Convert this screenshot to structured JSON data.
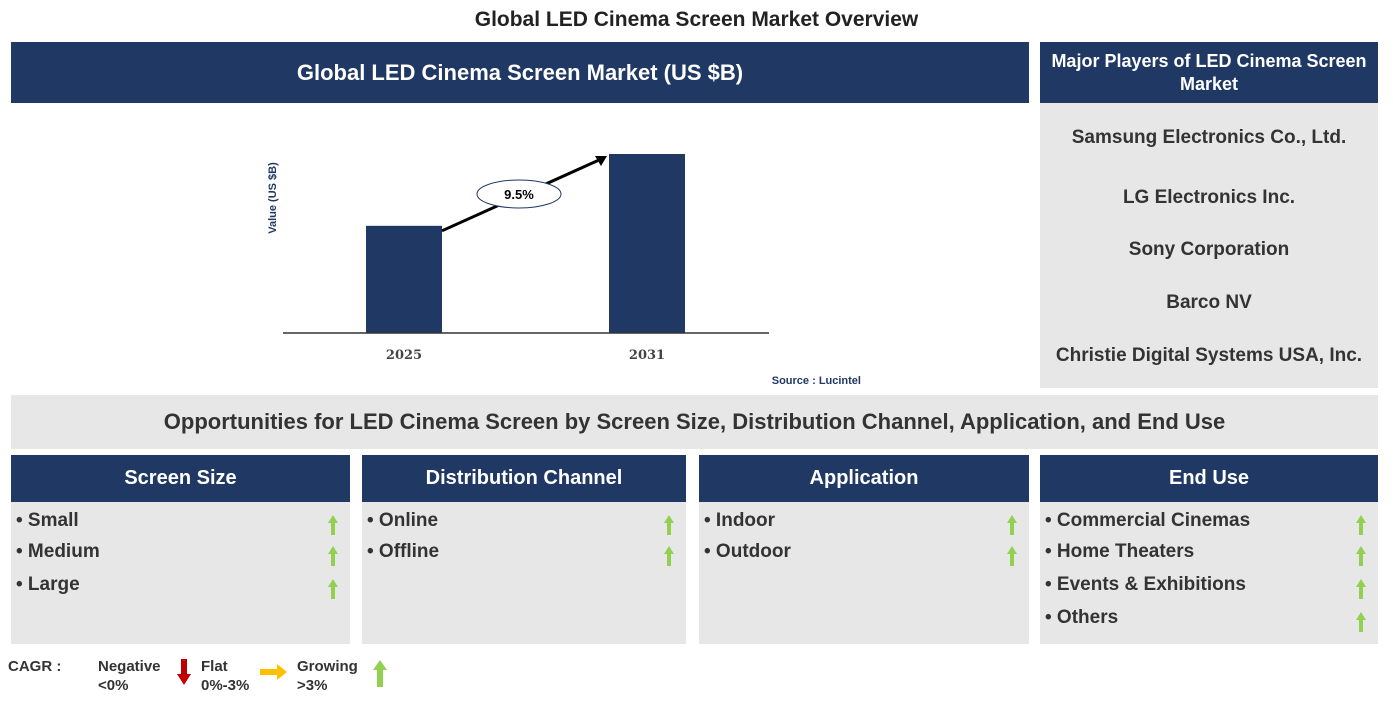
{
  "title": "Global LED Cinema Screen Market Overview",
  "chart_header": "Global LED Cinema Screen Market (US $B)",
  "chart_data": {
    "type": "bar",
    "categories": [
      "2025",
      "2031"
    ],
    "values": [
      1.0,
      1.67
    ],
    "ylabel": "Value (US $B)",
    "annotation": "9.5%",
    "source": "Source : Lucintel",
    "grid": false,
    "bar_color": "#203864"
  },
  "players": {
    "header": "Major Players of LED Cinema Screen Market",
    "items": [
      "Samsung Electronics Co., Ltd.",
      "LG Electronics Inc.",
      "Sony Corporation",
      "Barco NV",
      "Christie Digital Systems USA, Inc."
    ]
  },
  "opportunities": {
    "title": "Opportunities for LED Cinema Screen by Screen Size, Distribution Channel, Application, and End Use",
    "columns": [
      {
        "header": "Screen Size",
        "items": [
          "• Small",
          "• Medium",
          "• Large"
        ]
      },
      {
        "header": "Distribution Channel",
        "items": [
          "• Online",
          "• Offline"
        ]
      },
      {
        "header": "Application",
        "items": [
          "• Indoor",
          "• Outdoor"
        ]
      },
      {
        "header": "End Use",
        "items": [
          "• Commercial Cinemas",
          "• Home Theaters",
          "• Events & Exhibitions",
          "• Others"
        ]
      }
    ]
  },
  "legend": {
    "label": "CAGR :",
    "negative": "Negative",
    "negative_range": "<0%",
    "flat": "Flat",
    "flat_range": "0%-3%",
    "growing": "Growing",
    "growing_range": ">3%",
    "colors": {
      "negative": "#c00000",
      "flat": "#ffc000",
      "growing": "#92d050"
    }
  }
}
